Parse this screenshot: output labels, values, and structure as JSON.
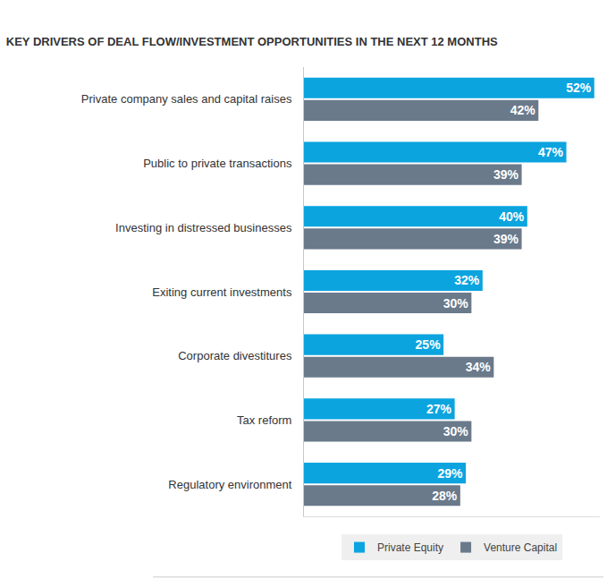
{
  "chart_data": {
    "type": "bar",
    "orientation": "horizontal",
    "title": "KEY DRIVERS OF DEAL FLOW/INVESTMENT OPPORTUNITIES IN THE NEXT 12 MONTHS",
    "categories": [
      "Private company sales and capital raises",
      "Public to private transactions",
      "Investing in distressed businesses",
      "Exiting current investments",
      "Corporate divestitures",
      "Tax reform",
      "Regulatory environment"
    ],
    "series": [
      {
        "name": "Private Equity",
        "color": "#0ba4df",
        "values": [
          52,
          47,
          40,
          32,
          25,
          27,
          29
        ],
        "value_labels": [
          "52%",
          "47%",
          "40%",
          "32%",
          "25%",
          "27%",
          "29%"
        ]
      },
      {
        "name": "Venture Capital",
        "color": "#6a7a8b",
        "values": [
          42,
          39,
          39,
          30,
          34,
          30,
          28
        ],
        "value_labels": [
          "42%",
          "39%",
          "39%",
          "30%",
          "34%",
          "30%",
          "28%"
        ]
      }
    ],
    "xlim": [
      0,
      53
    ],
    "xticks": [],
    "tick_labels": "y",
    "data_labels": true,
    "grid": false,
    "legend": "bottom"
  }
}
